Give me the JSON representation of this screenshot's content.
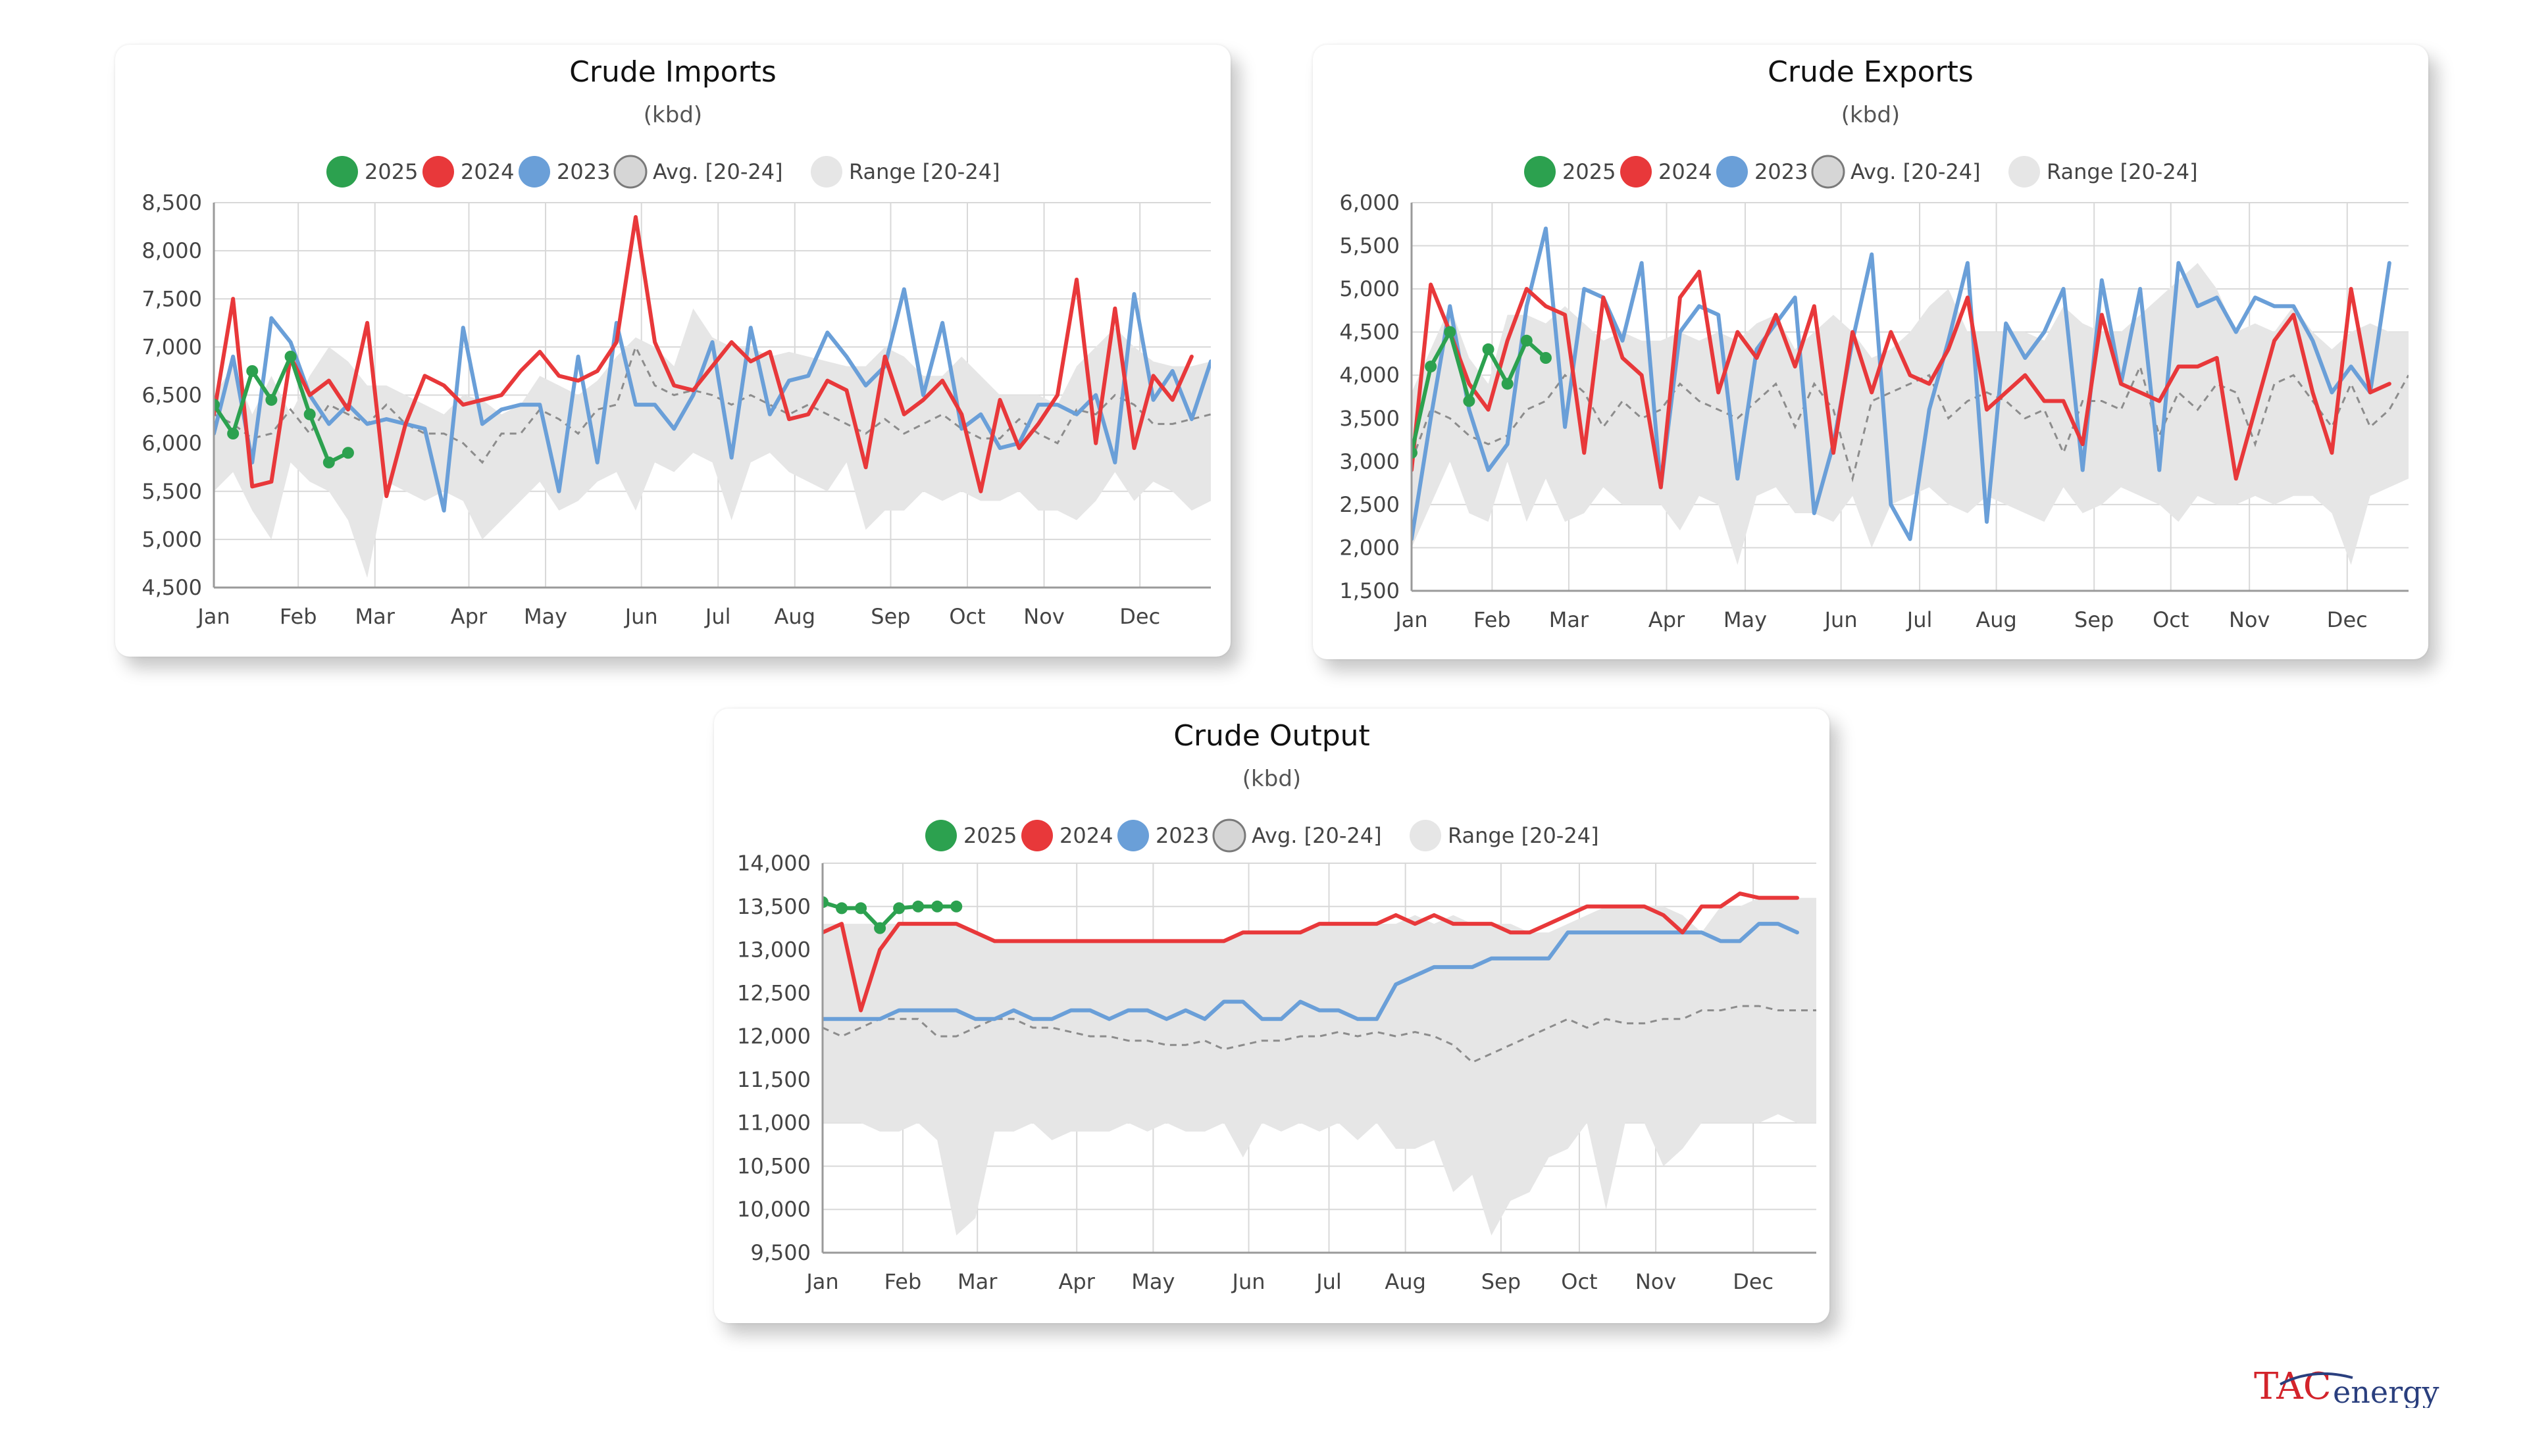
{
  "colors": {
    "series_2025": "#2ca14f",
    "series_2024": "#e8383a",
    "series_2023": "#6a9fd8",
    "avg": "#8c8c8c",
    "range": "#e6e6e6",
    "grid": "#d8d8d8",
    "axis": "#9a9a9a"
  },
  "legend_labels": [
    "2025",
    "2024",
    "2023",
    "Avg. [20-24]",
    "Range [20-24]"
  ],
  "logo": {
    "tac": "TAC",
    "energy": "energy"
  },
  "chart_data": [
    {
      "id": "imports",
      "type": "line",
      "title": "Crude Imports",
      "subtitle": "(kbd)",
      "ylim": [
        4500,
        8500
      ],
      "yticks": [
        4500,
        5000,
        5500,
        6000,
        6500,
        7000,
        7500,
        8000,
        8500
      ],
      "ytick_labels": [
        "4,500",
        "5,000",
        "5,500",
        "6,000",
        "6,500",
        "7,000",
        "7,500",
        "8,000",
        "8,500"
      ],
      "xlim": [
        0,
        52
      ],
      "xticks": [
        0,
        4.4,
        8.4,
        13.3,
        17.3,
        22.3,
        26.3,
        30.3,
        35.3,
        39.3,
        43.3,
        48.3
      ],
      "xtick_labels": [
        "Jan",
        "Feb",
        "Mar",
        "Apr",
        "May",
        "Jun",
        "Jul",
        "Aug",
        "Sep",
        "Oct",
        "Nov",
        "Dec"
      ],
      "range_upper": [
        6500,
        6800,
        6300,
        6700,
        6300,
        6700,
        7000,
        6850,
        6600,
        6600,
        6500,
        6400,
        6300,
        6500,
        6450,
        6300,
        6400,
        6700,
        6600,
        6500,
        6650,
        6900,
        7100,
        7000,
        6800,
        7400,
        7100,
        7000,
        7000,
        6900,
        6950,
        6900,
        6850,
        6800,
        6800,
        7000,
        6900,
        6700,
        6700,
        6900,
        6700,
        6500,
        6500,
        6500,
        6400,
        6800,
        7000,
        7200,
        7000,
        6850,
        6800,
        6800,
        6850
      ],
      "range_lower": [
        5500,
        5700,
        5300,
        5000,
        5800,
        5600,
        5500,
        5200,
        4600,
        5600,
        5500,
        5400,
        5500,
        5400,
        5000,
        5200,
        5400,
        5600,
        5300,
        5400,
        5600,
        5700,
        5300,
        5800,
        5700,
        5900,
        5800,
        5200,
        5800,
        5900,
        5700,
        5600,
        5500,
        5800,
        5100,
        5300,
        5300,
        5500,
        5400,
        5500,
        5400,
        5400,
        5500,
        5300,
        5300,
        5200,
        5400,
        5700,
        5400,
        5600,
        5500,
        5300,
        5400
      ],
      "avg": [
        6300,
        6200,
        6050,
        6100,
        6350,
        6100,
        6400,
        6300,
        6200,
        6400,
        6200,
        6100,
        6100,
        6000,
        5800,
        6100,
        6100,
        6350,
        6250,
        6100,
        6350,
        6400,
        7000,
        6600,
        6500,
        6550,
        6500,
        6400,
        6500,
        6400,
        6300,
        6400,
        6300,
        6200,
        6100,
        6250,
        6100,
        6200,
        6300,
        6150,
        6050,
        6050,
        6250,
        6100,
        6000,
        6350,
        6300,
        6500,
        6400,
        6200,
        6200,
        6250,
        6300
      ],
      "series": [
        {
          "name": "2023",
          "color_key": "series_2023",
          "markers": false,
          "values": [
            6100,
            6900,
            5800,
            7300,
            7050,
            6500,
            6200,
            6400,
            6200,
            6250,
            6200,
            6150,
            5300,
            7200,
            6200,
            6350,
            6400,
            6400,
            5500,
            6900,
            5800,
            7250,
            6400,
            6400,
            6150,
            6500,
            7050,
            5850,
            7200,
            6300,
            6650,
            6700,
            7150,
            6900,
            6600,
            6800,
            7600,
            6500,
            7250,
            6150,
            6300,
            5950,
            6000,
            6400,
            6400,
            6300,
            6500,
            5800,
            7550,
            6450,
            6750,
            6250,
            6850
          ]
        },
        {
          "name": "2024",
          "color_key": "series_2024",
          "markers": false,
          "values": [
            6300,
            7500,
            5550,
            5600,
            6900,
            6500,
            6650,
            6350,
            7250,
            5450,
            6200,
            6700,
            6600,
            6400,
            6450,
            6500,
            6750,
            6950,
            6700,
            6650,
            6750,
            7050,
            8350,
            7050,
            6600,
            6550,
            6800,
            7050,
            6850,
            6950,
            6250,
            6300,
            6650,
            6550,
            5750,
            6900,
            6300,
            6450,
            6650,
            6300,
            5500,
            6450,
            5950,
            6200,
            6500,
            7700,
            6000,
            7400,
            5950,
            6700,
            6450,
            6900
          ]
        },
        {
          "name": "2025",
          "color_key": "series_2025",
          "markers": true,
          "values": [
            6400,
            6100,
            6750,
            6450,
            6900,
            6300,
            5800,
            5900
          ]
        }
      ]
    },
    {
      "id": "exports",
      "type": "line",
      "title": "Crude Exports",
      "subtitle": "(kbd)",
      "ylim": [
        1500,
        6000
      ],
      "yticks": [
        1500,
        2000,
        2500,
        3000,
        3500,
        4000,
        4500,
        5000,
        5500,
        6000
      ],
      "ytick_labels": [
        "1,500",
        "2,000",
        "2,500",
        "3,000",
        "3,500",
        "4,000",
        "4,500",
        "5,000",
        "5,500",
        "6,000"
      ],
      "xlim": [
        0,
        52
      ],
      "xticks": [
        0,
        4.2,
        8.2,
        13.3,
        17.4,
        22.4,
        26.5,
        30.5,
        35.6,
        39.6,
        43.7,
        48.8
      ],
      "xtick_labels": [
        "Jan",
        "Feb",
        "Mar",
        "Apr",
        "May",
        "Jun",
        "Jul",
        "Aug",
        "Sep",
        "Oct",
        "Nov",
        "Dec"
      ],
      "range_upper": [
        3800,
        4300,
        4800,
        4200,
        3900,
        4700,
        4700,
        4600,
        4800,
        4600,
        4400,
        4500,
        4400,
        4400,
        4500,
        4400,
        4500,
        4400,
        4600,
        4700,
        4300,
        4500,
        4700,
        4500,
        4200,
        4300,
        4500,
        4800,
        5000,
        4500,
        4500,
        4500,
        4500,
        4400,
        4800,
        4600,
        4500,
        4500,
        4700,
        4900,
        5100,
        5300,
        5000,
        4500,
        4600,
        4500,
        4800,
        4500,
        4300,
        4500,
        4600,
        4500,
        4500
      ],
      "range_lower": [
        2000,
        2500,
        3000,
        2400,
        2300,
        3000,
        2300,
        2800,
        2300,
        2400,
        2700,
        2500,
        2500,
        2500,
        2200,
        2600,
        2500,
        1800,
        2600,
        2700,
        2400,
        2400,
        2300,
        2600,
        2000,
        2500,
        2600,
        2700,
        2500,
        2400,
        2600,
        2500,
        2400,
        2300,
        2700,
        2400,
        2500,
        2700,
        2600,
        2500,
        2300,
        2600,
        2500,
        2500,
        2600,
        2500,
        2600,
        2600,
        2400,
        1800,
        2600,
        2700,
        2800
      ],
      "avg": [
        3000,
        3600,
        3500,
        3300,
        3200,
        3300,
        3600,
        3700,
        4000,
        3800,
        3400,
        3700,
        3500,
        3600,
        3900,
        3700,
        3600,
        3500,
        3700,
        3900,
        3400,
        3900,
        3600,
        2800,
        3700,
        3800,
        3900,
        4000,
        3500,
        3700,
        3800,
        3700,
        3500,
        3600,
        3100,
        3700,
        3700,
        3600,
        4100,
        3300,
        3800,
        3600,
        3900,
        3800,
        3200,
        3900,
        4000,
        3700,
        3400,
        3900,
        3400,
        3600,
        4000
      ],
      "series": [
        {
          "name": "2023",
          "color_key": "series_2023",
          "markers": false,
          "values": [
            2100,
            3500,
            4800,
            3600,
            2900,
            3200,
            4800,
            5700,
            3400,
            5000,
            4900,
            4400,
            5300,
            2700,
            4500,
            4800,
            4700,
            2800,
            4300,
            4600,
            4900,
            2400,
            3200,
            4400,
            5400,
            2500,
            2100,
            3600,
            4400,
            5300,
            2300,
            4600,
            4200,
            4500,
            5000,
            2900,
            5100,
            3900,
            5000,
            2900,
            5300,
            4800,
            4900,
            4500,
            4900,
            4800,
            4800,
            4400,
            3800,
            4100,
            3800,
            5300
          ]
        },
        {
          "name": "2024",
          "color_key": "series_2024",
          "markers": false,
          "values": [
            2900,
            5050,
            4500,
            3900,
            3600,
            4400,
            5000,
            4800,
            4700,
            3100,
            4900,
            4200,
            4000,
            2700,
            4900,
            5200,
            3800,
            4500,
            4200,
            4700,
            4100,
            4800,
            3100,
            4500,
            3800,
            4500,
            4000,
            3900,
            4300,
            4900,
            3600,
            3800,
            4000,
            3700,
            3700,
            3200,
            4700,
            3900,
            3800,
            3700,
            4100,
            4100,
            4200,
            2800,
            3600,
            4400,
            4700,
            3800,
            3100,
            5000,
            3800,
            3900
          ]
        },
        {
          "name": "2025",
          "color_key": "series_2025",
          "markers": true,
          "values": [
            3100,
            4100,
            4500,
            3700,
            4300,
            3900,
            4400,
            4200
          ]
        }
      ]
    },
    {
      "id": "output",
      "type": "line",
      "title": "Crude Output",
      "subtitle": "(kbd)",
      "ylim": [
        9500,
        14000
      ],
      "yticks": [
        9500,
        10000,
        10500,
        11000,
        11500,
        12000,
        12500,
        13000,
        13500,
        14000
      ],
      "ytick_labels": [
        "9,500",
        "10,000",
        "10,500",
        "11,000",
        "11,500",
        "12,000",
        "12,500",
        "13,000",
        "13,500",
        "14,000"
      ],
      "xlim": [
        0,
        52
      ],
      "xticks": [
        0,
        4.2,
        8.1,
        13.3,
        17.3,
        22.3,
        26.5,
        30.5,
        35.5,
        39.6,
        43.6,
        48.7
      ],
      "xtick_labels": [
        "Jan",
        "Feb",
        "Mar",
        "Apr",
        "May",
        "Jun",
        "Jul",
        "Aug",
        "Sep",
        "Oct",
        "Nov",
        "Dec"
      ],
      "range_upper": [
        13300,
        13300,
        13300,
        13300,
        13300,
        13300,
        13300,
        13300,
        13200,
        13100,
        13100,
        13100,
        13100,
        13100,
        13100,
        13100,
        13100,
        13100,
        13100,
        13100,
        13100,
        13100,
        13200,
        13200,
        13200,
        13200,
        13300,
        13300,
        13300,
        13300,
        13300,
        13400,
        13300,
        13400,
        13300,
        13300,
        13300,
        13200,
        13200,
        13300,
        13400,
        13500,
        13500,
        13500,
        13500,
        13400,
        13200,
        13500,
        13500,
        13600,
        13600,
        13600,
        13600
      ],
      "range_lower": [
        11000,
        11000,
        11000,
        10900,
        10900,
        11000,
        10800,
        9700,
        9900,
        10900,
        10900,
        11000,
        10800,
        10900,
        10900,
        10900,
        11000,
        10900,
        11000,
        10900,
        10900,
        11000,
        10600,
        11000,
        10900,
        11000,
        10900,
        11000,
        10800,
        11000,
        10700,
        10700,
        10800,
        10200,
        10400,
        9700,
        10100,
        10200,
        10600,
        10700,
        11000,
        10000,
        11000,
        11000,
        10500,
        10700,
        11000,
        11000,
        11000,
        11000,
        11100,
        11000,
        11000
      ],
      "avg": [
        12100,
        12000,
        12100,
        12200,
        12200,
        12200,
        12000,
        12000,
        12100,
        12200,
        12200,
        12100,
        12100,
        12050,
        12000,
        12000,
        11950,
        11950,
        11900,
        11900,
        11950,
        11850,
        11900,
        11950,
        11950,
        12000,
        12000,
        12050,
        12000,
        12050,
        12000,
        12050,
        12000,
        11900,
        11700,
        11800,
        11900,
        12000,
        12100,
        12200,
        12100,
        12200,
        12150,
        12150,
        12200,
        12200,
        12300,
        12300,
        12350,
        12350,
        12300,
        12300,
        12300
      ],
      "series": [
        {
          "name": "2023",
          "color_key": "series_2023",
          "markers": false,
          "values": [
            12200,
            12200,
            12200,
            12200,
            12300,
            12300,
            12300,
            12300,
            12200,
            12200,
            12300,
            12200,
            12200,
            12300,
            12300,
            12200,
            12300,
            12300,
            12200,
            12300,
            12200,
            12400,
            12400,
            12200,
            12200,
            12400,
            12300,
            12300,
            12200,
            12200,
            12600,
            12700,
            12800,
            12800,
            12800,
            12900,
            12900,
            12900,
            12900,
            13200,
            13200,
            13200,
            13200,
            13200,
            13200,
            13200,
            13200,
            13100,
            13100,
            13300,
            13300,
            13200
          ]
        },
        {
          "name": "2024",
          "color_key": "series_2024",
          "markers": false,
          "values": [
            13200,
            13300,
            12300,
            13000,
            13300,
            13300,
            13300,
            13300,
            13200,
            13100,
            13100,
            13100,
            13100,
            13100,
            13100,
            13100,
            13100,
            13100,
            13100,
            13100,
            13100,
            13100,
            13200,
            13200,
            13200,
            13200,
            13300,
            13300,
            13300,
            13300,
            13400,
            13300,
            13400,
            13300,
            13300,
            13300,
            13200,
            13200,
            13300,
            13400,
            13500,
            13500,
            13500,
            13500,
            13400,
            13200,
            13500,
            13500,
            13650,
            13600,
            13600,
            13600
          ]
        },
        {
          "name": "2025",
          "color_key": "series_2025",
          "markers": true,
          "values": [
            13550,
            13480,
            13480,
            13250,
            13480,
            13500,
            13500,
            13500
          ]
        }
      ]
    }
  ]
}
